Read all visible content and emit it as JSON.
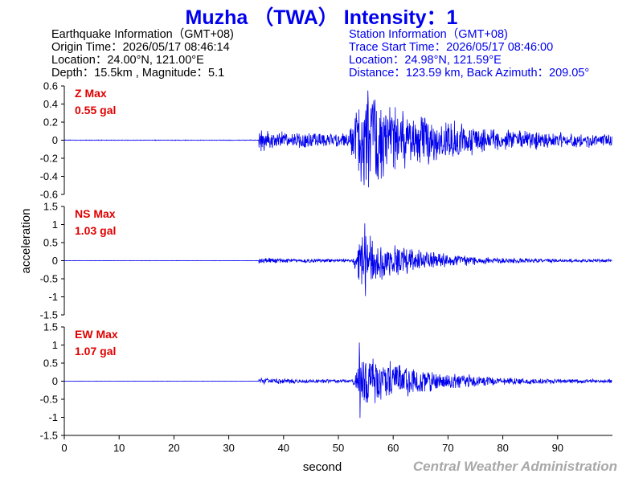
{
  "title": "Muzha （TWA） Intensity：1",
  "earthquake_info": {
    "heading": "Earthquake Information（GMT+08)",
    "origin_time": "Origin Time：2026/05/17 08:46:14",
    "location": "Location：24.00°N, 121.00°E",
    "depth_magnitude": "Depth：15.5km , Magnitude：5.1"
  },
  "station_info": {
    "heading": "Station Information（GMT+08)",
    "trace_start": "Trace Start Time：2026/05/17 08:46:00",
    "location": "Location：24.98°N, 121.59°E",
    "distance": "Distance：123.59 km, Back Azimuth：209.05°"
  },
  "credit": "Central Weather Administration",
  "colors": {
    "title": "#0000ee",
    "trace": "#0000ee",
    "max_label": "#e00000",
    "credit": "#a8a8a8"
  },
  "chart_data": {
    "type": "line",
    "xlabel": "second",
    "ylabel": "acceleration",
    "xlim": [
      0,
      100
    ],
    "xticks": [
      "0",
      "10",
      "20",
      "30",
      "40",
      "50",
      "60",
      "70",
      "80",
      "90"
    ],
    "grid": false,
    "panels": [
      {
        "name": "Z",
        "max_title": "Z Max",
        "max_value": "0.55 gal",
        "peak": 0.55,
        "ylim": [
          -0.6,
          0.6
        ],
        "yticks": [
          "0.6",
          "0.4",
          "0.2",
          "0",
          "-0.2",
          "-0.4",
          "-0.6"
        ],
        "p_arrival": 35.5,
        "s_arrival": 52.0,
        "peak_time": 55.4,
        "noise": 0.004,
        "p_amp": 0.13,
        "s_amp": 0.5,
        "decay": 0.07
      },
      {
        "name": "NS",
        "max_title": "NS Max",
        "max_value": "1.03 gal",
        "peak": 1.03,
        "ylim": [
          -1.5,
          1.5
        ],
        "yticks": [
          "1.5",
          "1",
          "0.5",
          "0",
          "-0.5",
          "-1",
          "-1.5"
        ],
        "p_arrival": 35.5,
        "s_arrival": 52.5,
        "peak_time": 54.8,
        "noise": 0.005,
        "p_amp": 0.08,
        "s_amp": 0.85,
        "decay": 0.11
      },
      {
        "name": "EW",
        "max_title": "EW Max",
        "max_value": "1.07 gal",
        "peak": 1.07,
        "ylim": [
          -1.5,
          1.5
        ],
        "yticks": [
          "1.5",
          "1",
          "0.5",
          "0",
          "-0.5",
          "-1",
          "-1.5"
        ],
        "p_arrival": 35.5,
        "s_arrival": 52.5,
        "peak_time": 53.8,
        "noise": 0.005,
        "p_amp": 0.09,
        "s_amp": 0.8,
        "decay": 0.09
      }
    ]
  }
}
